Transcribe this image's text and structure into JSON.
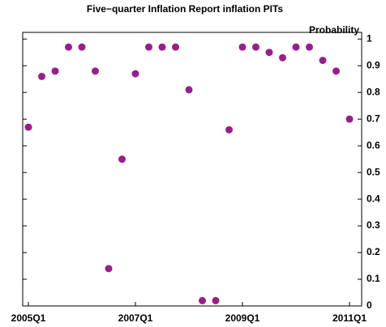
{
  "chart_data": {
    "type": "scatter",
    "title": "Five−quarter Inflation Report inflation PITs",
    "y_label": "Probability",
    "categories": [
      "2005Q1",
      null,
      null,
      null,
      null,
      null,
      null,
      null,
      "2007Q1",
      null,
      null,
      null,
      null,
      null,
      null,
      null,
      "2009Q1",
      null,
      null,
      null,
      null,
      null,
      null,
      null,
      "2011Q1"
    ],
    "series": [
      {
        "name": "PIT",
        "color": "#9a1d8c",
        "values": [
          0.67,
          0.86,
          0.88,
          0.97,
          0.97,
          0.88,
          0.14,
          0.55,
          0.87,
          0.97,
          0.97,
          0.97,
          0.81,
          0.02,
          0.02,
          0.66,
          0.97,
          0.97,
          0.95,
          0.93,
          0.97,
          0.97,
          0.92,
          0.88,
          0.7
        ]
      }
    ],
    "ylim": [
      0,
      1.025
    ],
    "yticks": [
      0,
      0.1,
      0.2,
      0.3,
      0.4,
      0.5,
      0.6,
      0.7,
      0.8,
      0.9,
      1
    ],
    "y_axis_side": "right"
  }
}
